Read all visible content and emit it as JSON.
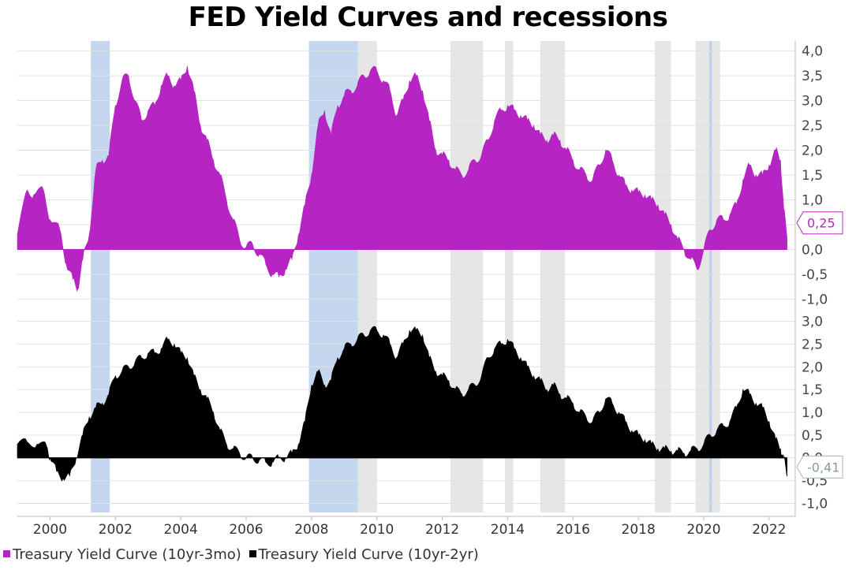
{
  "title": "FED Yield Curves and recessions",
  "chart_data": {
    "type": "area",
    "title": "FED Yield Curves and recessions",
    "x_range": [
      1999.0,
      2022.8
    ],
    "x_ticks": [
      2000,
      2002,
      2004,
      2006,
      2008,
      2010,
      2012,
      2014,
      2016,
      2018,
      2020,
      2022
    ],
    "x_tick_labels": [
      "2000",
      "2002",
      "2004",
      "2006",
      "2008",
      "2010",
      "2012",
      "2014",
      "2016",
      "2018",
      "2020",
      "2022"
    ],
    "recessions": [
      [
        2001.25,
        2001.83
      ],
      [
        2007.92,
        2009.42
      ],
      [
        2020.17,
        2020.25
      ]
    ],
    "shaded_periods": [
      [
        2009.42,
        2010.0
      ],
      [
        2012.25,
        2013.25
      ],
      [
        2013.92,
        2014.17
      ],
      [
        2015.0,
        2015.75
      ],
      [
        2018.5,
        2019.0
      ],
      [
        2019.75,
        2020.5
      ]
    ],
    "panels": [
      {
        "name": "Treasury Yield Curve (10yr-3mo)",
        "color": "#b625c4",
        "ylim": [
          -1.2,
          4.2
        ],
        "y_ticks": [
          -1.0,
          -0.5,
          0.0,
          0.5,
          1.0,
          1.5,
          2.0,
          2.5,
          3.0,
          3.5,
          4.0
        ],
        "y_tick_labels": [
          "-1,0",
          "-0,5",
          "0,0",
          "0,5",
          "1,0",
          "1,5",
          "2,0",
          "2,5",
          "3,0",
          "3,5",
          "4,0"
        ],
        "last_value_label": "0,25",
        "x": [
          1999.0,
          1999.3,
          1999.5,
          1999.8,
          2000.0,
          2000.3,
          2000.5,
          2000.7,
          2000.85,
          2001.0,
          2001.2,
          2001.4,
          2001.6,
          2001.8,
          2002.0,
          2002.2,
          2002.4,
          2002.6,
          2002.8,
          2003.0,
          2003.2,
          2003.4,
          2003.6,
          2003.8,
          2004.0,
          2004.2,
          2004.4,
          2004.6,
          2004.8,
          2005.0,
          2005.2,
          2005.4,
          2005.6,
          2005.8,
          2006.0,
          2006.2,
          2006.4,
          2006.6,
          2006.8,
          2007.0,
          2007.2,
          2007.4,
          2007.6,
          2007.8,
          2008.0,
          2008.2,
          2008.4,
          2008.6,
          2008.8,
          2009.0,
          2009.2,
          2009.4,
          2009.6,
          2009.8,
          2010.0,
          2010.2,
          2010.4,
          2010.6,
          2010.8,
          2011.0,
          2011.2,
          2011.4,
          2011.6,
          2011.8,
          2012.0,
          2012.2,
          2012.4,
          2012.6,
          2012.8,
          2013.0,
          2013.2,
          2013.4,
          2013.6,
          2013.8,
          2014.0,
          2014.2,
          2014.4,
          2014.6,
          2014.8,
          2015.0,
          2015.2,
          2015.4,
          2015.6,
          2015.8,
          2016.0,
          2016.2,
          2016.4,
          2016.6,
          2016.8,
          2017.0,
          2017.2,
          2017.4,
          2017.6,
          2017.8,
          2018.0,
          2018.2,
          2018.4,
          2018.6,
          2018.8,
          2019.0,
          2019.2,
          2019.4,
          2019.6,
          2019.8,
          2020.0,
          2020.2,
          2020.4,
          2020.6,
          2020.8,
          2021.0,
          2021.2,
          2021.4,
          2021.6,
          2021.8,
          2022.0,
          2022.2,
          2022.35,
          2022.45,
          2022.55
        ],
        "values": [
          0.3,
          1.2,
          1.1,
          1.2,
          0.6,
          0.4,
          -0.3,
          -0.6,
          -0.8,
          -0.2,
          0.3,
          1.6,
          1.8,
          1.9,
          2.9,
          3.4,
          3.5,
          3.0,
          2.6,
          2.8,
          2.9,
          3.3,
          3.5,
          3.3,
          3.4,
          3.7,
          3.2,
          2.5,
          2.2,
          1.8,
          1.5,
          1.0,
          0.6,
          0.2,
          0.05,
          0.1,
          -0.1,
          -0.3,
          -0.5,
          -0.55,
          -0.4,
          -0.2,
          0.3,
          0.9,
          1.5,
          2.5,
          2.8,
          2.3,
          2.9,
          3.1,
          3.2,
          3.3,
          3.5,
          3.6,
          3.6,
          3.4,
          3.2,
          2.7,
          3.0,
          3.4,
          3.5,
          3.2,
          2.6,
          2.0,
          1.9,
          1.8,
          1.6,
          1.5,
          1.6,
          1.8,
          1.9,
          2.2,
          2.6,
          2.8,
          2.9,
          2.8,
          2.7,
          2.6,
          2.5,
          2.3,
          2.2,
          2.3,
          2.2,
          2.0,
          1.8,
          1.6,
          1.5,
          1.4,
          1.7,
          2.0,
          1.8,
          1.5,
          1.3,
          1.2,
          1.15,
          1.1,
          1.0,
          0.9,
          0.7,
          0.5,
          0.2,
          0.0,
          -0.2,
          -0.4,
          0.0,
          0.4,
          0.6,
          0.6,
          0.7,
          0.9,
          1.4,
          1.7,
          1.5,
          1.5,
          1.7,
          2.0,
          1.8,
          0.8,
          0.25
        ]
      },
      {
        "name": "Treasury Yield Curve (10yr-2yr)",
        "color": "#000000",
        "ylim": [
          -1.2,
          3.2
        ],
        "y_ticks": [
          -1.0,
          -0.5,
          0.0,
          0.5,
          1.0,
          1.5,
          2.0,
          2.5,
          3.0
        ],
        "y_tick_labels": [
          "-1,0",
          "-0,5",
          "0,0",
          "0,5",
          "1,0",
          "1,5",
          "2,0",
          "2,5",
          "3,0"
        ],
        "last_value_label": "-0,41",
        "x": [
          1999.0,
          1999.3,
          1999.6,
          1999.9,
          2000.0,
          2000.2,
          2000.4,
          2000.6,
          2000.8,
          2001.0,
          2001.2,
          2001.4,
          2001.6,
          2001.8,
          2002.0,
          2002.2,
          2002.4,
          2002.6,
          2002.8,
          2003.0,
          2003.2,
          2003.4,
          2003.6,
          2003.8,
          2004.0,
          2004.2,
          2004.4,
          2004.6,
          2004.8,
          2005.0,
          2005.2,
          2005.4,
          2005.6,
          2005.8,
          2006.0,
          2006.2,
          2006.4,
          2006.6,
          2006.8,
          2007.0,
          2007.2,
          2007.4,
          2007.6,
          2007.8,
          2008.0,
          2008.2,
          2008.4,
          2008.6,
          2008.8,
          2009.0,
          2009.2,
          2009.4,
          2009.6,
          2009.8,
          2010.0,
          2010.2,
          2010.4,
          2010.6,
          2010.8,
          2011.0,
          2011.2,
          2011.4,
          2011.6,
          2011.8,
          2012.0,
          2012.2,
          2012.4,
          2012.6,
          2012.8,
          2013.0,
          2013.2,
          2013.4,
          2013.6,
          2013.8,
          2014.0,
          2014.2,
          2014.4,
          2014.6,
          2014.8,
          2015.0,
          2015.2,
          2015.4,
          2015.6,
          2015.8,
          2016.0,
          2016.2,
          2016.4,
          2016.6,
          2016.8,
          2017.0,
          2017.2,
          2017.4,
          2017.6,
          2017.8,
          2018.0,
          2018.2,
          2018.4,
          2018.6,
          2018.8,
          2019.0,
          2019.2,
          2019.4,
          2019.6,
          2019.8,
          2020.0,
          2020.2,
          2020.4,
          2020.6,
          2020.8,
          2021.0,
          2021.2,
          2021.4,
          2021.6,
          2021.8,
          2022.0,
          2022.2,
          2022.35,
          2022.45,
          2022.55
        ],
        "values": [
          0.3,
          0.35,
          0.3,
          0.25,
          0.0,
          -0.3,
          -0.45,
          -0.4,
          0.0,
          0.5,
          0.9,
          1.1,
          1.2,
          1.4,
          1.8,
          1.9,
          2.0,
          2.1,
          2.2,
          2.3,
          2.3,
          2.4,
          2.6,
          2.5,
          2.3,
          2.2,
          1.8,
          1.5,
          1.3,
          1.0,
          0.6,
          0.3,
          0.2,
          0.1,
          0.0,
          0.0,
          -0.05,
          -0.1,
          -0.1,
          0.0,
          0.0,
          0.1,
          0.3,
          0.8,
          1.6,
          1.9,
          1.6,
          1.7,
          2.2,
          2.4,
          2.5,
          2.6,
          2.7,
          2.8,
          2.8,
          2.7,
          2.5,
          2.2,
          2.5,
          2.8,
          2.8,
          2.7,
          2.2,
          1.9,
          1.8,
          1.7,
          1.5,
          1.4,
          1.5,
          1.6,
          1.8,
          2.2,
          2.4,
          2.5,
          2.6,
          2.4,
          2.2,
          2.0,
          1.8,
          1.7,
          1.5,
          1.6,
          1.4,
          1.3,
          1.2,
          1.0,
          0.9,
          0.8,
          1.0,
          1.3,
          1.2,
          1.0,
          0.8,
          0.6,
          0.5,
          0.4,
          0.3,
          0.2,
          0.2,
          0.15,
          0.15,
          0.1,
          0.15,
          0.2,
          0.3,
          0.5,
          0.6,
          0.7,
          0.8,
          1.1,
          1.5,
          1.4,
          1.2,
          1.1,
          0.8,
          0.4,
          0.2,
          0.0,
          -0.41
        ]
      }
    ],
    "legend": [
      {
        "label": "Treasury Yield Curve (10yr-3mo)",
        "color": "#b625c4"
      },
      {
        "label": "Treasury Yield Curve (10yr-2yr)",
        "color": "#000000"
      }
    ],
    "legend_position": "bottom-left"
  }
}
